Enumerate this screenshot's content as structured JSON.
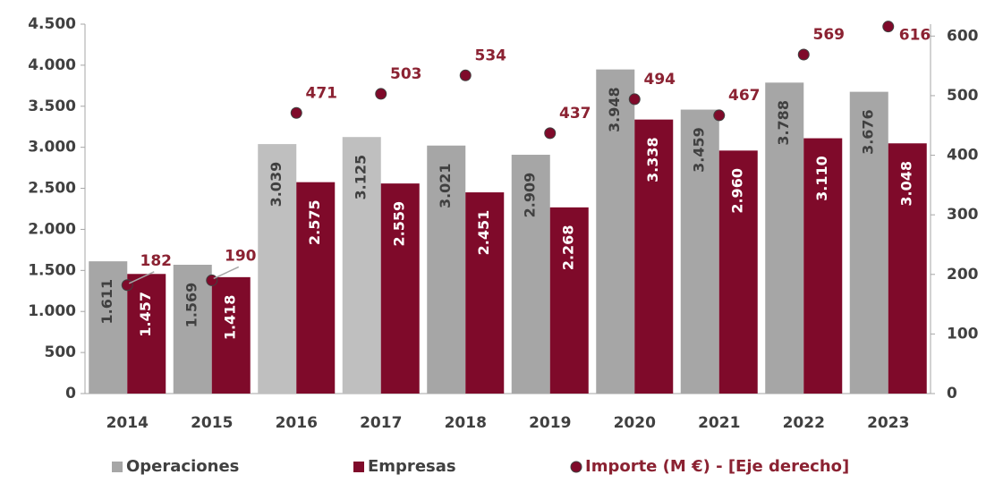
{
  "chart_data": {
    "type": "bar",
    "categories": [
      "2014",
      "2015",
      "2016",
      "2017",
      "2018",
      "2019",
      "2020",
      "2021",
      "2022",
      "2023"
    ],
    "series": [
      {
        "name": "Operaciones",
        "type": "bar",
        "color": "#a6a6a6",
        "colors": [
          "#a6a6a6",
          "#a6a6a6",
          "#bfbfbf",
          "#bfbfbf",
          "#a6a6a6",
          "#a6a6a6",
          "#a6a6a6",
          "#a6a6a6",
          "#a6a6a6",
          "#a6a6a6"
        ],
        "values": [
          1611,
          1569,
          3039,
          3125,
          3021,
          2909,
          3948,
          3459,
          3788,
          3676
        ],
        "value_labels": [
          "1.611",
          "1.569",
          "3.039",
          "3.125",
          "3.021",
          "2.909",
          "3.948",
          "3.459",
          "3.788",
          "3.676"
        ]
      },
      {
        "name": "Empresas",
        "type": "bar",
        "color": "#7f0a2a",
        "values": [
          1457,
          1418,
          2575,
          2559,
          2451,
          2268,
          3338,
          2960,
          3110,
          3048
        ],
        "value_labels": [
          "1.457",
          "1.418",
          "2.575",
          "2.559",
          "2.451",
          "2.268",
          "3.338",
          "2.960",
          "3.110",
          "3.048"
        ]
      },
      {
        "name": "Importe (M €) - [Eje derecho]",
        "type": "scatter",
        "axis": "y2",
        "color": "#7f0a2a",
        "label_color": "#8b2232",
        "values": [
          182,
          190,
          471,
          503,
          534,
          437,
          494,
          467,
          569,
          616
        ]
      }
    ],
    "ylim": [
      0,
      4500
    ],
    "yticks": [
      {
        "value": 0,
        "label": "0"
      },
      {
        "value": 500,
        "label": "500"
      },
      {
        "value": 1000,
        "label": "1.000"
      },
      {
        "value": 1500,
        "label": "1.500"
      },
      {
        "value": 2000,
        "label": "2.000"
      },
      {
        "value": 2500,
        "label": "2.500"
      },
      {
        "value": 3000,
        "label": "3.000"
      },
      {
        "value": 3500,
        "label": "3.500"
      },
      {
        "value": 4000,
        "label": "4.000"
      },
      {
        "value": 4500,
        "label": "4.500"
      }
    ],
    "y2lim": [
      0,
      620
    ],
    "y2ticks": [
      0,
      100,
      200,
      300,
      400,
      500,
      600
    ],
    "grid": false,
    "legend": "bottom"
  }
}
